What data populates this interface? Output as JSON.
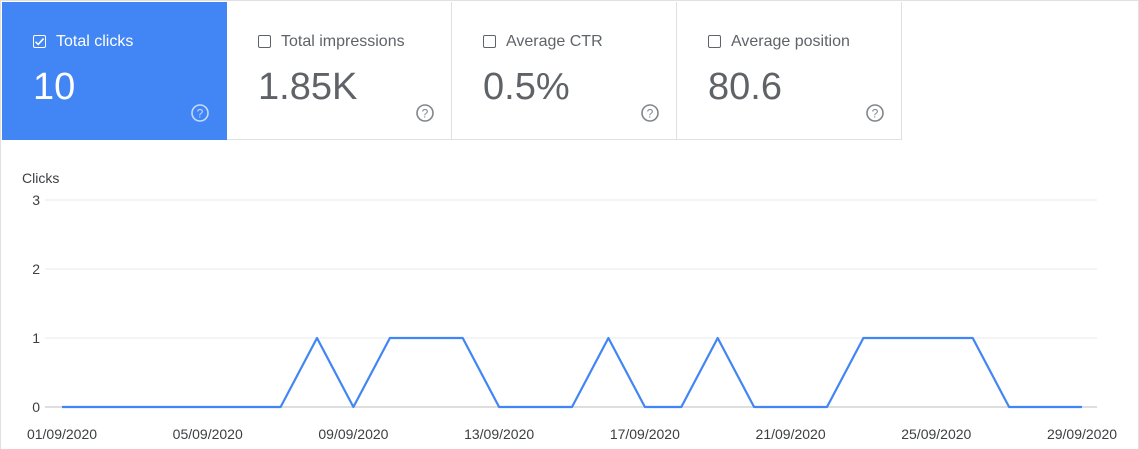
{
  "metrics": [
    {
      "label": "Total clicks",
      "value": "10",
      "checked": true
    },
    {
      "label": "Total impressions",
      "value": "1.85K",
      "checked": false
    },
    {
      "label": "Average CTR",
      "value": "0.5%",
      "checked": false
    },
    {
      "label": "Average position",
      "value": "80.6",
      "checked": false
    }
  ],
  "colors": {
    "accent": "#4285f4",
    "line": "#4285f4",
    "muted": "#5f6368"
  },
  "chart_data": {
    "type": "line",
    "ylabel": "Clicks",
    "ylim": [
      0,
      3
    ],
    "yticks": [
      "0",
      "1",
      "2",
      "3"
    ],
    "xticks": [
      "01/09/2020",
      "05/09/2020",
      "09/09/2020",
      "13/09/2020",
      "17/09/2020",
      "21/09/2020",
      "25/09/2020",
      "29/09/2020"
    ],
    "grid": true,
    "series": [
      {
        "x": [
          "01/09/2020",
          "02/09/2020",
          "03/09/2020",
          "04/09/2020",
          "05/09/2020",
          "06/09/2020",
          "07/09/2020",
          "08/09/2020",
          "09/09/2020",
          "10/09/2020",
          "11/09/2020",
          "12/09/2020",
          "13/09/2020",
          "14/09/2020",
          "15/09/2020",
          "16/09/2020",
          "17/09/2020",
          "18/09/2020",
          "19/09/2020",
          "20/09/2020",
          "21/09/2020",
          "22/09/2020",
          "23/09/2020",
          "24/09/2020",
          "25/09/2020",
          "26/09/2020",
          "27/09/2020",
          "28/09/2020",
          "29/09/2020"
        ],
        "values": [
          0,
          0,
          0,
          0,
          0,
          0,
          0,
          1,
          0,
          1,
          1,
          1,
          0,
          0,
          0,
          1,
          0,
          0,
          1,
          0,
          0,
          0,
          1,
          1,
          1,
          1,
          0,
          0,
          0
        ]
      }
    ]
  }
}
